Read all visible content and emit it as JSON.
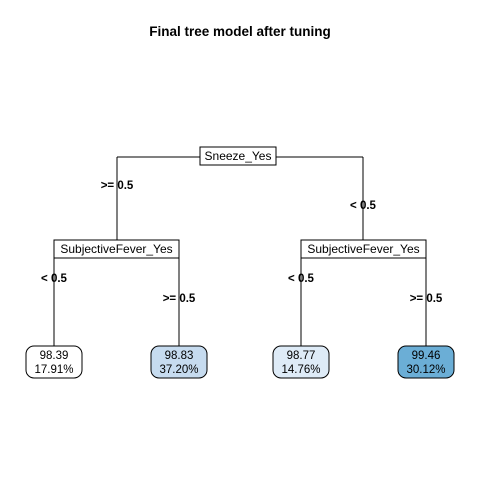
{
  "title": "Final tree model after tuning",
  "root": {
    "label": "Sneeze_Yes",
    "left_edge": ">= 0.5",
    "right_edge": "< 0.5"
  },
  "left_split": {
    "label": "SubjectiveFever_Yes",
    "left_edge": "< 0.5",
    "right_edge": ">= 0.5"
  },
  "right_split": {
    "label": "SubjectiveFever_Yes",
    "left_edge": "< 0.5",
    "right_edge": ">= 0.5"
  },
  "leaves": [
    {
      "value": "98.39",
      "percent": "17.91%",
      "fill": "#ffffff"
    },
    {
      "value": "98.83",
      "percent": "37.20%",
      "fill": "#c6dbef"
    },
    {
      "value": "98.77",
      "percent": "14.76%",
      "fill": "#deebf7"
    },
    {
      "value": "99.46",
      "percent": "30.12%",
      "fill": "#6baed6"
    }
  ]
}
